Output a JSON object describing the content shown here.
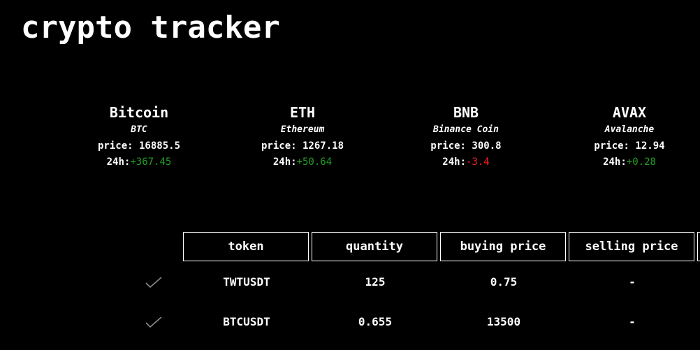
{
  "app": {
    "title": "crypto tracker"
  },
  "cards": [
    {
      "name": "Bitcoin",
      "symbol": "BTC",
      "price_label": "price:",
      "price": "16885.5",
      "change_label": "24h:",
      "change": "+367.45",
      "direction": "up"
    },
    {
      "name": "ETH",
      "symbol": "Ethereum",
      "price_label": "price:",
      "price": "1267.18",
      "change_label": "24h:",
      "change": "+50.64",
      "direction": "up"
    },
    {
      "name": "BNB",
      "symbol": "Binance Coin",
      "price_label": "price:",
      "price": "300.8",
      "change_label": "24h:",
      "change": "-3.4",
      "direction": "down"
    },
    {
      "name": "AVAX",
      "symbol": "Avalanche",
      "price_label": "price:",
      "price": "12.94",
      "change_label": "24h:",
      "change": "+0.28",
      "direction": "up"
    }
  ],
  "table": {
    "headers": [
      "token",
      "quantity",
      "buying price",
      "selling price"
    ],
    "rows": [
      {
        "token": "TWTUSDT",
        "quantity": "125",
        "buying_price": "0.75",
        "selling_price": "-"
      },
      {
        "token": "BTCUSDT",
        "quantity": "0.655",
        "buying_price": "13500",
        "selling_price": "-"
      }
    ]
  },
  "colors": {
    "background": "#000000",
    "text": "#ffffff",
    "positive": "#22a022",
    "negative": "#ff1f1f",
    "check": "#8a8a8a"
  },
  "icons": {
    "row_status": "check-icon"
  }
}
